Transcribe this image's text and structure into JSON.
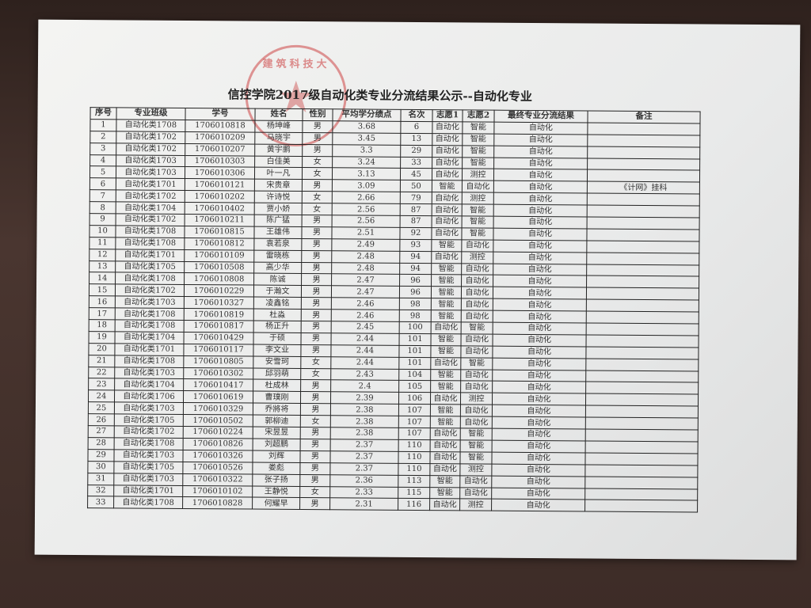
{
  "title": "信控学院2017级自动化类专业分流结果公示--自动化专业",
  "stamp_text": "建筑科技大",
  "headers": [
    "序号",
    "专业班级",
    "学号",
    "姓名",
    "性别",
    "平均学分绩点",
    "名次",
    "志愿1",
    "志愿2",
    "最终专业分流结果",
    "备注"
  ],
  "rows": [
    [
      "1",
      "自动化类1708",
      "1706010818",
      "杨坤峰",
      "男",
      "3.68",
      "6",
      "自动化",
      "智能",
      "自动化",
      ""
    ],
    [
      "2",
      "自动化类1702",
      "1706010209",
      "马晓宇",
      "男",
      "3.45",
      "13",
      "自动化",
      "智能",
      "自动化",
      ""
    ],
    [
      "3",
      "自动化类1702",
      "1706010207",
      "黄宇鹏",
      "男",
      "3.3",
      "29",
      "自动化",
      "智能",
      "自动化",
      ""
    ],
    [
      "4",
      "自动化类1703",
      "1706010303",
      "白佳美",
      "女",
      "3.24",
      "33",
      "自动化",
      "智能",
      "自动化",
      ""
    ],
    [
      "5",
      "自动化类1703",
      "1706010306",
      "叶一凡",
      "女",
      "3.13",
      "45",
      "自动化",
      "测控",
      "自动化",
      ""
    ],
    [
      "6",
      "自动化类1701",
      "1706010121",
      "宋贵章",
      "男",
      "3.09",
      "50",
      "智能",
      "自动化",
      "自动化",
      "《计网》挂科"
    ],
    [
      "7",
      "自动化类1702",
      "1706010202",
      "许诗悦",
      "女",
      "2.66",
      "79",
      "自动化",
      "测控",
      "自动化",
      ""
    ],
    [
      "8",
      "自动化类1704",
      "1706010402",
      "贾小娇",
      "女",
      "2.56",
      "87",
      "自动化",
      "智能",
      "自动化",
      ""
    ],
    [
      "9",
      "自动化类1702",
      "1706010211",
      "陈广猛",
      "男",
      "2.56",
      "87",
      "自动化",
      "智能",
      "自动化",
      ""
    ],
    [
      "10",
      "自动化类1708",
      "1706010815",
      "王雄伟",
      "男",
      "2.51",
      "92",
      "自动化",
      "智能",
      "自动化",
      ""
    ],
    [
      "11",
      "自动化类1708",
      "1706010812",
      "袁若泉",
      "男",
      "2.49",
      "93",
      "智能",
      "自动化",
      "自动化",
      ""
    ],
    [
      "12",
      "自动化类1701",
      "1706010109",
      "雷晓栋",
      "男",
      "2.48",
      "94",
      "自动化",
      "测控",
      "自动化",
      ""
    ],
    [
      "13",
      "自动化类1705",
      "1706010508",
      "高少华",
      "男",
      "2.48",
      "94",
      "智能",
      "自动化",
      "自动化",
      ""
    ],
    [
      "14",
      "自动化类1708",
      "1706010808",
      "陈诚",
      "男",
      "2.47",
      "96",
      "智能",
      "自动化",
      "自动化",
      ""
    ],
    [
      "15",
      "自动化类1702",
      "1706010229",
      "于瀚文",
      "男",
      "2.47",
      "96",
      "智能",
      "自动化",
      "自动化",
      ""
    ],
    [
      "16",
      "自动化类1703",
      "1706010327",
      "凌鑫铭",
      "男",
      "2.46",
      "98",
      "智能",
      "自动化",
      "自动化",
      ""
    ],
    [
      "17",
      "自动化类1708",
      "1706010819",
      "杜淼",
      "男",
      "2.46",
      "98",
      "智能",
      "自动化",
      "自动化",
      ""
    ],
    [
      "18",
      "自动化类1708",
      "1706010817",
      "杨正升",
      "男",
      "2.45",
      "100",
      "自动化",
      "智能",
      "自动化",
      ""
    ],
    [
      "19",
      "自动化类1704",
      "1706010429",
      "于硕",
      "男",
      "2.44",
      "101",
      "智能",
      "自动化",
      "自动化",
      ""
    ],
    [
      "20",
      "自动化类1701",
      "1706010117",
      "李文业",
      "男",
      "2.44",
      "101",
      "智能",
      "自动化",
      "自动化",
      ""
    ],
    [
      "21",
      "自动化类1708",
      "1706010805",
      "安雪珂",
      "女",
      "2.44",
      "101",
      "自动化",
      "智能",
      "自动化",
      ""
    ],
    [
      "22",
      "自动化类1703",
      "1706010302",
      "邱羽萌",
      "女",
      "2.43",
      "104",
      "智能",
      "自动化",
      "自动化",
      ""
    ],
    [
      "23",
      "自动化类1704",
      "1706010417",
      "杜成林",
      "男",
      "2.4",
      "105",
      "智能",
      "自动化",
      "自动化",
      ""
    ],
    [
      "24",
      "自动化类1706",
      "1706010619",
      "曹璞刚",
      "男",
      "2.39",
      "106",
      "自动化",
      "测控",
      "自动化",
      ""
    ],
    [
      "25",
      "自动化类1703",
      "1706010329",
      "乔將将",
      "男",
      "2.38",
      "107",
      "智能",
      "自动化",
      "自动化",
      ""
    ],
    [
      "26",
      "自动化类1705",
      "1706010502",
      "郭柳迪",
      "女",
      "2.38",
      "107",
      "智能",
      "自动化",
      "自动化",
      ""
    ],
    [
      "27",
      "自动化类1702",
      "1706010224",
      "宋昱昱",
      "男",
      "2.38",
      "107",
      "自动化",
      "智能",
      "自动化",
      ""
    ],
    [
      "28",
      "自动化类1708",
      "1706010826",
      "刘超鹏",
      "男",
      "2.37",
      "110",
      "自动化",
      "智能",
      "自动化",
      ""
    ],
    [
      "29",
      "自动化类1703",
      "1706010326",
      "刘辉",
      "男",
      "2.37",
      "110",
      "自动化",
      "智能",
      "自动化",
      ""
    ],
    [
      "30",
      "自动化类1705",
      "1706010526",
      "娄彪",
      "男",
      "2.37",
      "110",
      "自动化",
      "测控",
      "自动化",
      ""
    ],
    [
      "31",
      "自动化类1703",
      "1706010322",
      "张子扬",
      "男",
      "2.36",
      "113",
      "智能",
      "自动化",
      "自动化",
      ""
    ],
    [
      "32",
      "自动化类1701",
      "1706010102",
      "王静悦",
      "女",
      "2.33",
      "115",
      "智能",
      "自动化",
      "自动化",
      ""
    ],
    [
      "33",
      "自动化类1708",
      "1706010828",
      "何耀早",
      "男",
      "2.31",
      "116",
      "自动化",
      "测控",
      "自动化",
      ""
    ]
  ]
}
